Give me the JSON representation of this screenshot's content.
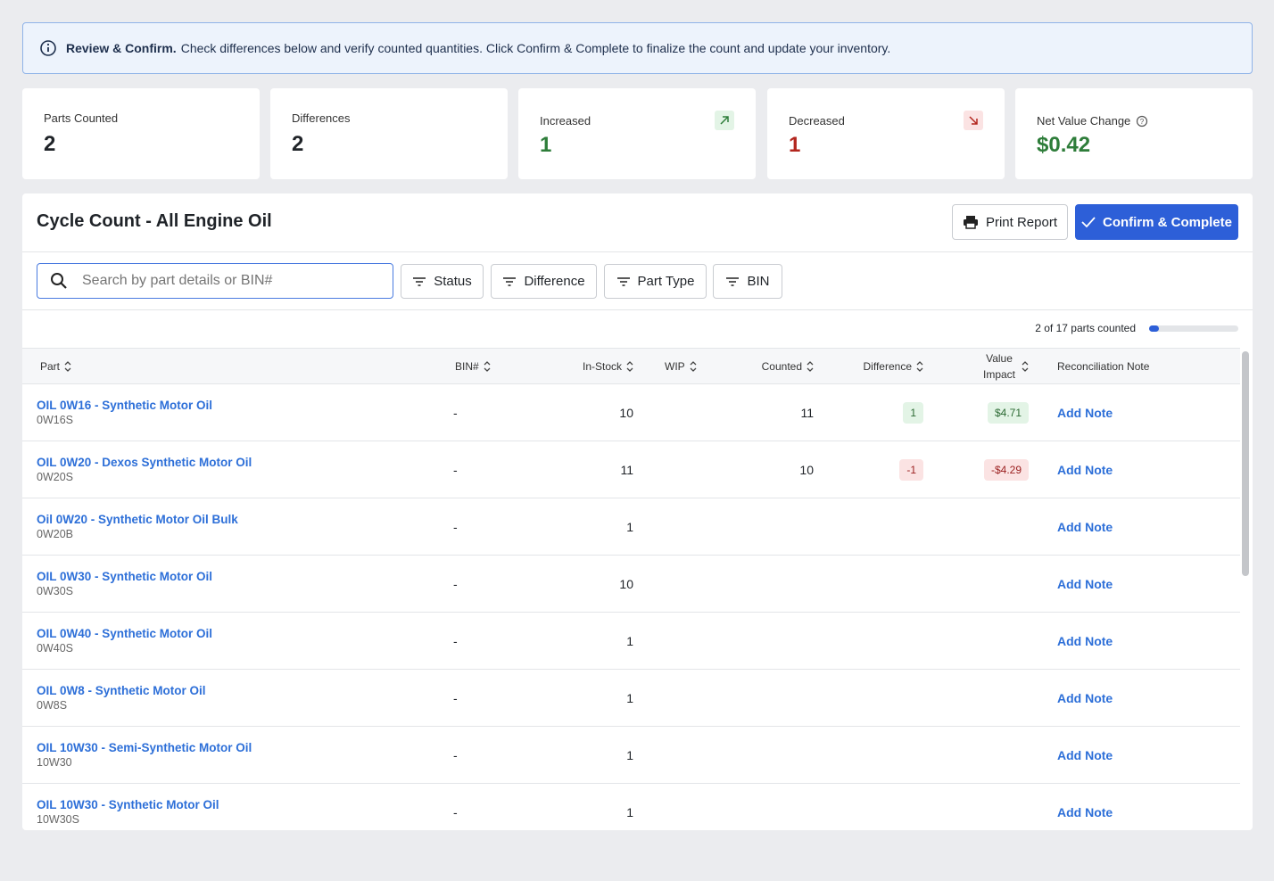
{
  "banner": {
    "title": "Review & Confirm.",
    "text": "Check differences below and verify counted quantities. Click Confirm & Complete to finalize the count and update your inventory."
  },
  "stats": [
    {
      "label": "Parts Counted",
      "value": 2
    },
    {
      "label": "Differences",
      "value": 2
    },
    {
      "label": "Increased",
      "value": 1
    },
    {
      "label": "Decreased",
      "value": 1
    },
    {
      "label": "Net Value Change",
      "value": "$0.42"
    }
  ],
  "panel": {
    "title": "Cycle Count - All Engine Oil",
    "buttons": [
      "Print Report",
      "Confirm & Complete"
    ],
    "search_placeholder": "Search by part details or BIN#",
    "filters": [
      "Status",
      "Difference",
      "Part Type",
      "BIN"
    ],
    "progress_label": "2 of 17 parts counted"
  },
  "table": {
    "columns": [
      "Part",
      "BIN#",
      "In-Stock",
      "WIP",
      "Counted",
      "Difference",
      "Value Impact",
      "Reconciliation Note"
    ],
    "rows": [
      {
        "name": "OIL 0W16 - Synthetic Motor Oil",
        "code": "0W16S",
        "bin": "-",
        "in_stock": 10,
        "counted": 11,
        "difference": 1,
        "value_impact": "$4.71",
        "note": "Add Note"
      },
      {
        "name": "OIL 0W20 - Dexos Synthetic Motor Oil",
        "code": "0W20S",
        "bin": "-",
        "in_stock": 11,
        "counted": 10,
        "difference": -1,
        "value_impact": "-$4.29",
        "note": "Add Note"
      },
      {
        "name": "Oil 0W20 - Synthetic Motor Oil Bulk",
        "code": "0W20B",
        "bin": "-",
        "in_stock": 1,
        "note": "Add Note"
      },
      {
        "name": "OIL 0W30 - Synthetic Motor Oil",
        "code": "0W30S",
        "bin": "-",
        "in_stock": 10,
        "note": "Add Note"
      },
      {
        "name": "OIL 0W40 - Synthetic Motor Oil",
        "code": "0W40S",
        "bin": "-",
        "in_stock": 1,
        "note": "Add Note"
      },
      {
        "name": "OIL 0W8 - Synthetic Motor Oil",
        "code": "0W8S",
        "bin": "-",
        "in_stock": 1,
        "note": "Add Note"
      },
      {
        "name": "OIL 10W30 - Semi-Synthetic Motor Oil",
        "code": "10W30",
        "bin": "-",
        "in_stock": 1,
        "note": "Add Note"
      },
      {
        "name": "OIL 10W30 - Synthetic Motor Oil",
        "code": "10W30S",
        "bin": "-",
        "in_stock": 1,
        "note": "Add Note"
      }
    ]
  }
}
